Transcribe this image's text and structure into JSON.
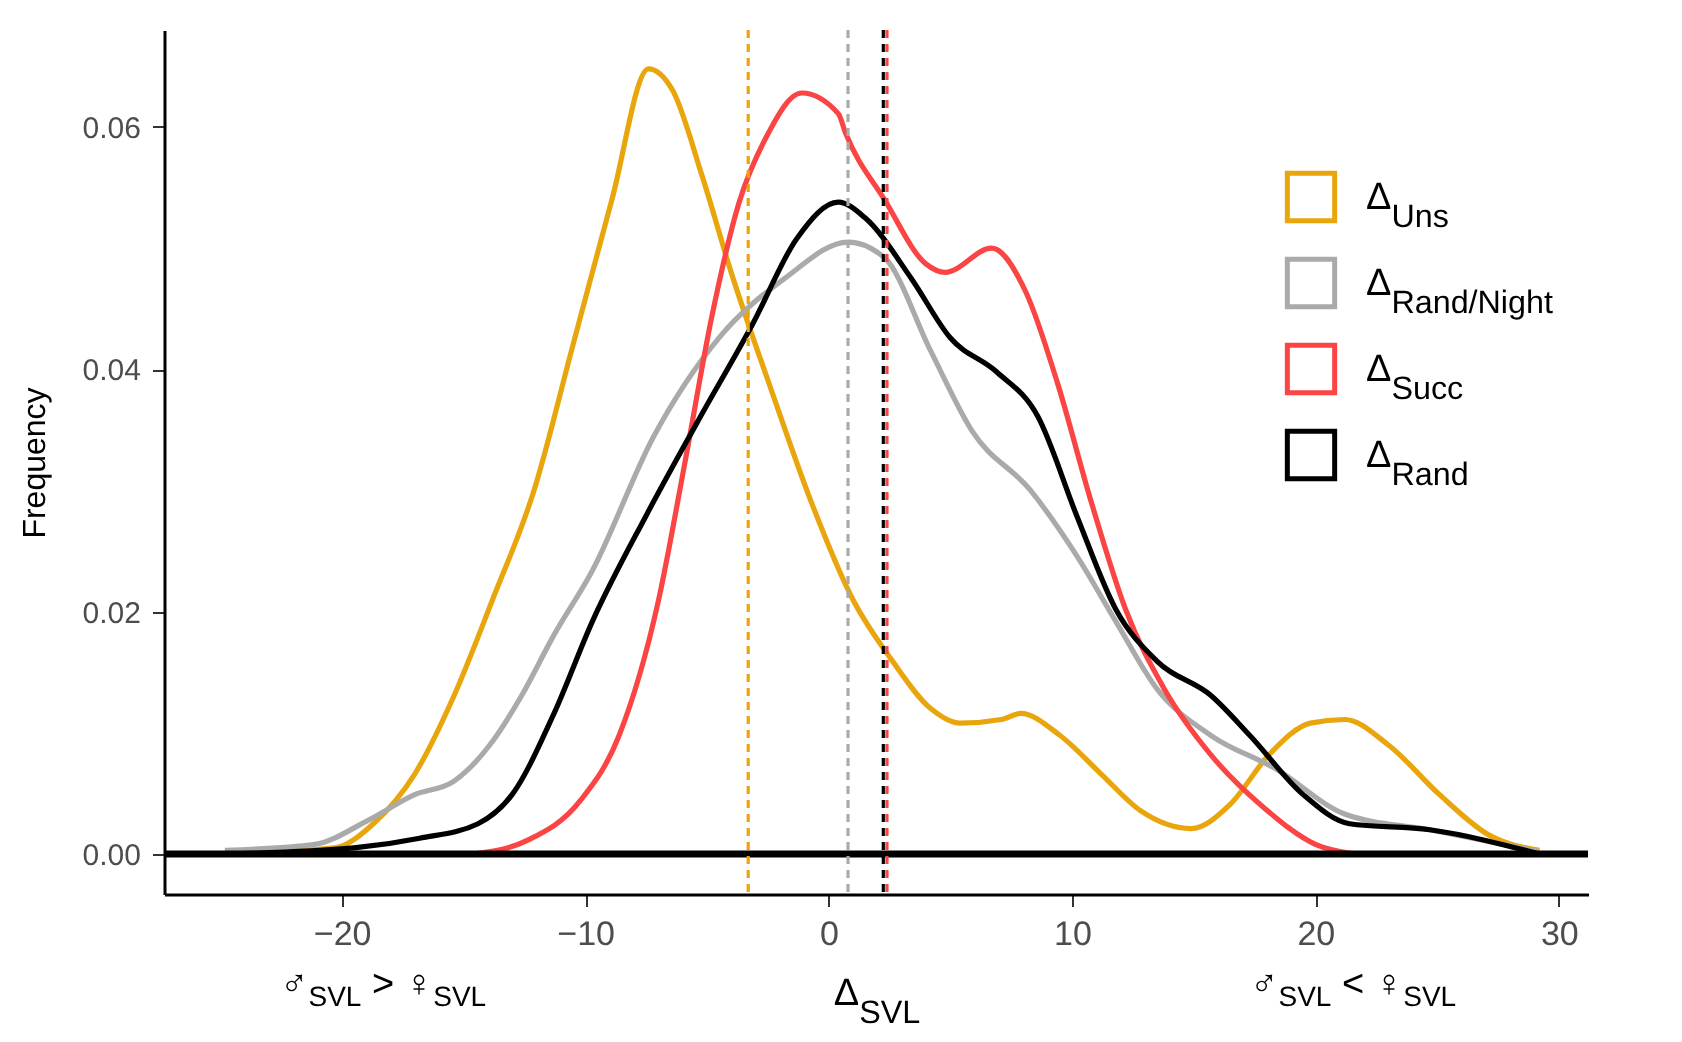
{
  "chart_data": {
    "type": "line",
    "xlabel": "Δ$_{SVL}$",
    "ylabel": "Frequency",
    "annotations": [
      "♂$_{SVL}$ > ♀$_{SVL}$",
      "♂$_{SVL}$ < ♀$_{SVL}$"
    ],
    "xlim": [
      -27.3,
      31.2
    ],
    "ylim": [
      -0.0033,
      0.068
    ],
    "xticks": [
      -20,
      -10,
      0,
      10,
      20,
      30
    ],
    "yticks": [
      {
        "value": 0,
        "label": "0.00"
      },
      {
        "value": 0.02,
        "label": "0.02"
      },
      {
        "value": 0.04,
        "label": "0.04"
      },
      {
        "value": 0.06,
        "label": "0.06"
      }
    ],
    "grid": false,
    "legend": "right",
    "marker": "none",
    "line_style": "solid",
    "series": [
      {
        "name": "Δ$_{Uns}$",
        "color": "#e8a50c",
        "x": [
          -24.8,
          -20.3,
          -18.7,
          -17.0,
          -15.4,
          -13.8,
          -12.1,
          -10.5,
          -8.9,
          -7.4,
          -6.4,
          -5.2,
          -4.0,
          -2.3,
          -0.7,
          1.0,
          2.6,
          4.2,
          5.4,
          7.1,
          7.9,
          9.5,
          11.2,
          12.8,
          14.9,
          16.5,
          18.1,
          19.8,
          21.2,
          23.0,
          25.1,
          27.1,
          29.2
        ],
        "values": [
          0,
          0.0005,
          0.0025,
          0.0066,
          0.013,
          0.021,
          0.03,
          0.042,
          0.054,
          0.0648,
          0.063,
          0.056,
          0.048,
          0.038,
          0.029,
          0.021,
          0.016,
          0.012,
          0.0108,
          0.0111,
          0.0116,
          0.0098,
          0.0066,
          0.0036,
          0.0021,
          0.0041,
          0.0082,
          0.0108,
          0.0111,
          0.009,
          0.0049,
          0.0016,
          0.0003
        ]
      },
      {
        "name": "Δ$_{Rand/Night}$",
        "color": "#aaaaaa",
        "x": [
          -24.8,
          -21.1,
          -18.9,
          -17.0,
          -15.4,
          -13.8,
          -12.6,
          -11.3,
          -9.7,
          -7.2,
          -4.5,
          -1.8,
          0.8,
          2.3,
          4.2,
          5.9,
          8.3,
          10.2,
          11.8,
          13.5,
          15.7,
          18.4,
          21.2,
          24.7,
          29.2
        ],
        "values": [
          0.0003,
          0.0008,
          0.0028,
          0.0049,
          0.006,
          0.0093,
          0.0131,
          0.018,
          0.0234,
          0.0344,
          0.0426,
          0.0475,
          0.0505,
          0.0492,
          0.0415,
          0.0349,
          0.03,
          0.0246,
          0.0192,
          0.0136,
          0.0098,
          0.007,
          0.0033,
          0.002,
          0.0002
        ]
      },
      {
        "name": "Δ$_{Succ}$",
        "color": "#fb4444",
        "x": [
          -14.6,
          -12.4,
          -10.2,
          -8.6,
          -7.0,
          -5.9,
          -4.8,
          -3.7,
          -2.6,
          -1.1,
          0.4,
          0.7,
          2.3,
          4.0,
          4.8,
          6.7,
          8.1,
          9.4,
          10.8,
          12.2,
          13.8,
          15.7,
          17.9,
          20.0,
          21.6
        ],
        "values": [
          0,
          0.0011,
          0.0044,
          0.0098,
          0.0208,
          0.0323,
          0.0443,
          0.0536,
          0.059,
          0.0628,
          0.0611,
          0.0595,
          0.054,
          0.0487,
          0.048,
          0.05,
          0.0464,
          0.0389,
          0.029,
          0.0202,
          0.0136,
          0.0082,
          0.0038,
          0.0008,
          0
        ]
      },
      {
        "name": "Δ$_{Rand}$",
        "color": "#000000",
        "x": [
          -24.8,
          -19.5,
          -16.8,
          -14.4,
          -13.0,
          -11.3,
          -9.7,
          -7.5,
          -5.4,
          -3.1,
          -1.3,
          0.4,
          1.5,
          3.4,
          5.0,
          6.9,
          8.6,
          10.2,
          11.8,
          13.5,
          15.7,
          17.3,
          19.5,
          21.4,
          24.7,
          29.2
        ],
        "values": [
          0,
          0.0005,
          0.0013,
          0.0025,
          0.0049,
          0.0115,
          0.0192,
          0.0279,
          0.0356,
          0.0438,
          0.0508,
          0.0538,
          0.0525,
          0.0475,
          0.0426,
          0.0398,
          0.0361,
          0.0279,
          0.0202,
          0.0159,
          0.0131,
          0.0098,
          0.0049,
          0.0025,
          0.002,
          0
        ]
      }
    ],
    "ref_lines": [
      {
        "axis": "y",
        "value": 0,
        "color": "#000000",
        "line_style": "solid"
      },
      {
        "axis": "x",
        "value": -3.3,
        "color": "#e8a50c",
        "line_style": "dashed"
      },
      {
        "axis": "x",
        "value": 0.8,
        "color": "#aaaaaa",
        "line_style": "dashed"
      },
      {
        "axis": "x",
        "value": 2.25,
        "color": "#000000",
        "line_style": "dashed"
      },
      {
        "axis": "x",
        "value": 2.4,
        "color": "#fb4444",
        "line_style": "dashed"
      }
    ]
  }
}
